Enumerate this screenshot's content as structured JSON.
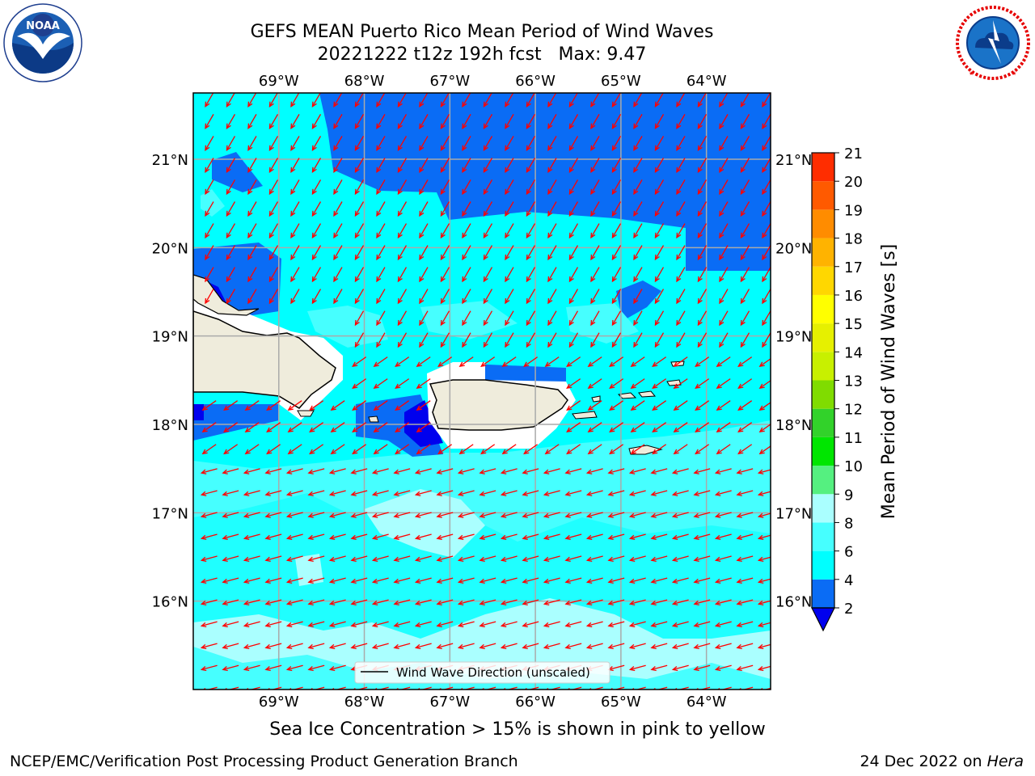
{
  "header": {
    "title_line1": "GEFS MEAN Puerto Rico Mean Period of Wind Waves",
    "title_line2": "20221222 t12z 192h fcst   Max: 9.47"
  },
  "logos": {
    "left": {
      "name": "noaa-logo",
      "text": "NOAA",
      "ring_text": "NATIONAL OCEANIC AND ATMOSPHERIC ADMINISTRATION · U.S. DEPARTMENT OF COMMERCE"
    },
    "right": {
      "name": "nws-logo",
      "ring_text": "NATIONAL WEATHER SERVICE"
    }
  },
  "map": {
    "lon_range": [
      -70.0,
      -63.25
    ],
    "lat_range": [
      15.0,
      21.75
    ],
    "lon_ticks": [
      "69°W",
      "68°W",
      "67°W",
      "66°W",
      "65°W",
      "64°W"
    ],
    "lat_ticks": [
      "21°N",
      "20°N",
      "19°N",
      "18°N",
      "17°N",
      "16°N"
    ],
    "grid": true,
    "vector_color": "#ff0000",
    "land_color": "#efecdc",
    "legend_label": "Wind Wave Direction (unscaled)"
  },
  "colorbar": {
    "label": "Mean Period of Wind Waves [s]",
    "tick_labels": [
      "2",
      "4",
      "6",
      "8",
      "9",
      "10",
      "11",
      "12",
      "13",
      "14",
      "15",
      "16",
      "17",
      "18",
      "19",
      "20",
      "21"
    ],
    "colors": [
      "#0a6cf5",
      "#00ffff",
      "#46ffff",
      "#aaffff",
      "#55f080",
      "#00e600",
      "#32d22a",
      "#80dc00",
      "#c8f000",
      "#e6f000",
      "#ffff00",
      "#ffd700",
      "#ffb300",
      "#ff8c00",
      "#ff5a00",
      "#ff2d00",
      "#ff0000"
    ],
    "under_color": "#0000ee"
  },
  "ice_note": "Sea Ice Concentration > 15% is shown in pink to yellow",
  "footer": {
    "left": "NCEP/EMC/Verification Post Processing Product Generation Branch",
    "right_date": "24 Dec 2022 on ",
    "right_host": "Hera"
  }
}
